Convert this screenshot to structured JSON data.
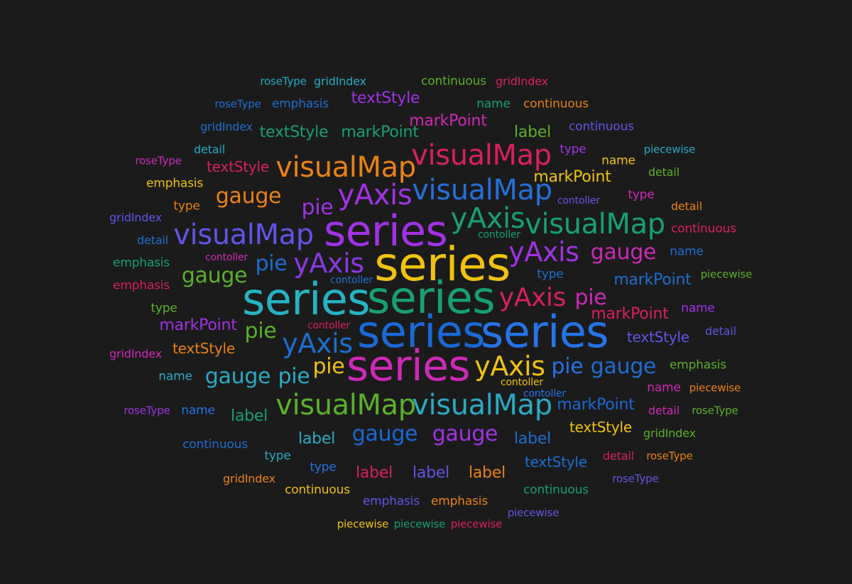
{
  "chart_data": {
    "type": "wordcloud",
    "background": "#1b1b1b",
    "words": [
      {
        "text": "series",
        "weight": 66,
        "color": "#f0c20f"
      },
      {
        "text": "series",
        "weight": 62,
        "color": "#26b3c4"
      },
      {
        "text": "series",
        "weight": 62,
        "color": "#17a071"
      },
      {
        "text": "series",
        "weight": 62,
        "color": "#1a69d7"
      },
      {
        "text": "series",
        "weight": 62,
        "color": "#2574e8"
      },
      {
        "text": "series",
        "weight": 60,
        "color": "#cf29b8"
      },
      {
        "text": "series",
        "weight": 60,
        "color": "#a132e6"
      },
      {
        "text": "visualMap",
        "weight": 40,
        "color": "#ea8114"
      },
      {
        "text": "visualMap",
        "weight": 40,
        "color": "#d9205e"
      },
      {
        "text": "visualMap",
        "weight": 40,
        "color": "#2570dc"
      },
      {
        "text": "visualMap",
        "weight": 40,
        "color": "#6254e6"
      },
      {
        "text": "visualMap",
        "weight": 40,
        "color": "#17a071"
      },
      {
        "text": "visualMap",
        "weight": 40,
        "color": "#5bb02a"
      },
      {
        "text": "visualMap",
        "weight": 40,
        "color": "#2aaac4"
      },
      {
        "text": "yAxis",
        "weight": 40,
        "color": "#a132e6"
      },
      {
        "text": "yAxis",
        "weight": 40,
        "color": "#17a071"
      },
      {
        "text": "yAxis",
        "weight": 38,
        "color": "#8c38e3"
      },
      {
        "text": "yAxis",
        "weight": 38,
        "color": "#a132e6"
      },
      {
        "text": "yAxis",
        "weight": 36,
        "color": "#d9205e"
      },
      {
        "text": "yAxis",
        "weight": 38,
        "color": "#1d6ed0"
      },
      {
        "text": "yAxis",
        "weight": 38,
        "color": "#f0c20f"
      },
      {
        "text": "gauge",
        "weight": 30,
        "color": "#ea8114"
      },
      {
        "text": "gauge",
        "weight": 30,
        "color": "#cf29b8"
      },
      {
        "text": "gauge",
        "weight": 30,
        "color": "#5bb02a"
      },
      {
        "text": "gauge",
        "weight": 30,
        "color": "#2aaac4"
      },
      {
        "text": "gauge",
        "weight": 30,
        "color": "#1a69d7"
      },
      {
        "text": "gauge",
        "weight": 30,
        "color": "#a132e6"
      },
      {
        "text": "gauge",
        "weight": 30,
        "color": "#1d6ed0"
      },
      {
        "text": "pie",
        "weight": 30,
        "color": "#a132e6"
      },
      {
        "text": "pie",
        "weight": 30,
        "color": "#1d6ed0"
      },
      {
        "text": "pie",
        "weight": 30,
        "color": "#cf29b8"
      },
      {
        "text": "pie",
        "weight": 30,
        "color": "#5bb02a"
      },
      {
        "text": "pie",
        "weight": 30,
        "color": "#f0c20f"
      },
      {
        "text": "pie",
        "weight": 30,
        "color": "#2aaac4"
      },
      {
        "text": "pie",
        "weight": 30,
        "color": "#2574e8"
      },
      {
        "text": "markPoint",
        "weight": 22,
        "color": "#cf29b8"
      },
      {
        "text": "markPoint",
        "weight": 22,
        "color": "#17a071"
      },
      {
        "text": "markPoint",
        "weight": 22,
        "color": "#f0c20f"
      },
      {
        "text": "markPoint",
        "weight": 22,
        "color": "#1d6ed0"
      },
      {
        "text": "markPoint",
        "weight": 22,
        "color": "#d9205e"
      },
      {
        "text": "markPoint",
        "weight": 22,
        "color": "#a132e6"
      },
      {
        "text": "markPoint",
        "weight": 22,
        "color": "#1a69d7"
      },
      {
        "text": "textStyle",
        "weight": 22,
        "color": "#a132e6"
      },
      {
        "text": "textStyle",
        "weight": 22,
        "color": "#17a071"
      },
      {
        "text": "textStyle",
        "weight": 20,
        "color": "#d9205e"
      },
      {
        "text": "textStyle",
        "weight": 20,
        "color": "#6254e6"
      },
      {
        "text": "textStyle",
        "weight": 20,
        "color": "#ea8114"
      },
      {
        "text": "textStyle",
        "weight": 20,
        "color": "#f0c20f"
      },
      {
        "text": "textStyle",
        "weight": 20,
        "color": "#1d6ed0"
      },
      {
        "text": "label",
        "weight": 22,
        "color": "#5bb02a"
      },
      {
        "text": "label",
        "weight": 22,
        "color": "#17a071"
      },
      {
        "text": "label",
        "weight": 22,
        "color": "#2aaac4"
      },
      {
        "text": "label",
        "weight": 22,
        "color": "#1d6ed0"
      },
      {
        "text": "label",
        "weight": 22,
        "color": "#d9205e"
      },
      {
        "text": "label",
        "weight": 22,
        "color": "#6254e6"
      },
      {
        "text": "label",
        "weight": 22,
        "color": "#ea8114"
      },
      {
        "text": "continuous",
        "weight": 17,
        "color": "#5bb02a"
      },
      {
        "text": "continuous",
        "weight": 17,
        "color": "#ea8114"
      },
      {
        "text": "continuous",
        "weight": 17,
        "color": "#6254e6"
      },
      {
        "text": "continuous",
        "weight": 17,
        "color": "#d9205e"
      },
      {
        "text": "continuous",
        "weight": 17,
        "color": "#1d6ed0"
      },
      {
        "text": "continuous",
        "weight": 17,
        "color": "#f0c20f"
      },
      {
        "text": "continuous",
        "weight": 17,
        "color": "#17a071"
      },
      {
        "text": "emphasis",
        "weight": 17,
        "color": "#1d6ed0"
      },
      {
        "text": "emphasis",
        "weight": 17,
        "color": "#f0c20f"
      },
      {
        "text": "emphasis",
        "weight": 17,
        "color": "#17a071"
      },
      {
        "text": "emphasis",
        "weight": 17,
        "color": "#d9205e"
      },
      {
        "text": "emphasis",
        "weight": 17,
        "color": "#5bb02a"
      },
      {
        "text": "emphasis",
        "weight": 17,
        "color": "#6254e6"
      },
      {
        "text": "emphasis",
        "weight": 17,
        "color": "#ea8114"
      },
      {
        "text": "name",
        "weight": 17,
        "color": "#17a071"
      },
      {
        "text": "name",
        "weight": 17,
        "color": "#f0c20f"
      },
      {
        "text": "name",
        "weight": 17,
        "color": "#1d6ed0"
      },
      {
        "text": "name",
        "weight": 17,
        "color": "#a132e6"
      },
      {
        "text": "name",
        "weight": 17,
        "color": "#2aaac4"
      },
      {
        "text": "name",
        "weight": 17,
        "color": "#cf29b8"
      },
      {
        "text": "name",
        "weight": 17,
        "color": "#2574e8"
      },
      {
        "text": "type",
        "weight": 17,
        "color": "#a132e6"
      },
      {
        "text": "type",
        "weight": 17,
        "color": "#cf29b8"
      },
      {
        "text": "type",
        "weight": 17,
        "color": "#ea8114"
      },
      {
        "text": "type",
        "weight": 17,
        "color": "#1d6ed0"
      },
      {
        "text": "type",
        "weight": 17,
        "color": "#5bb02a"
      },
      {
        "text": "type",
        "weight": 17,
        "color": "#2aaac4"
      },
      {
        "text": "type",
        "weight": 17,
        "color": "#2574e8"
      },
      {
        "text": "detail",
        "weight": 16,
        "color": "#2aaac4"
      },
      {
        "text": "detail",
        "weight": 16,
        "color": "#5bb02a"
      },
      {
        "text": "detail",
        "weight": 16,
        "color": "#ea8114"
      },
      {
        "text": "detail",
        "weight": 16,
        "color": "#1d6ed0"
      },
      {
        "text": "detail",
        "weight": 16,
        "color": "#6254e6"
      },
      {
        "text": "detail",
        "weight": 16,
        "color": "#cf29b8"
      },
      {
        "text": "detail",
        "weight": 16,
        "color": "#d9205e"
      },
      {
        "text": "gridIndex",
        "weight": 16,
        "color": "#2aaac4"
      },
      {
        "text": "gridIndex",
        "weight": 16,
        "color": "#d9205e"
      },
      {
        "text": "gridIndex",
        "weight": 16,
        "color": "#1d6ed0"
      },
      {
        "text": "gridIndex",
        "weight": 16,
        "color": "#6254e6"
      },
      {
        "text": "gridIndex",
        "weight": 16,
        "color": "#cf29b8"
      },
      {
        "text": "gridIndex",
        "weight": 16,
        "color": "#5bb02a"
      },
      {
        "text": "gridIndex",
        "weight": 16,
        "color": "#ea8114"
      },
      {
        "text": "roseType",
        "weight": 15,
        "color": "#2aaac4"
      },
      {
        "text": "roseType",
        "weight": 15,
        "color": "#1d6ed0"
      },
      {
        "text": "roseType",
        "weight": 15,
        "color": "#cf29b8"
      },
      {
        "text": "roseType",
        "weight": 15,
        "color": "#a132e6"
      },
      {
        "text": "roseType",
        "weight": 15,
        "color": "#5bb02a"
      },
      {
        "text": "roseType",
        "weight": 15,
        "color": "#ea8114"
      },
      {
        "text": "roseType",
        "weight": 15,
        "color": "#6254e6"
      },
      {
        "text": "piecewise",
        "weight": 15,
        "color": "#2aaac4"
      },
      {
        "text": "piecewise",
        "weight": 15,
        "color": "#5bb02a"
      },
      {
        "text": "piecewise",
        "weight": 15,
        "color": "#ea8114"
      },
      {
        "text": "piecewise",
        "weight": 15,
        "color": "#6254e6"
      },
      {
        "text": "piecewise",
        "weight": 15,
        "color": "#f0c20f"
      },
      {
        "text": "piecewise",
        "weight": 15,
        "color": "#17a071"
      },
      {
        "text": "piecewise",
        "weight": 15,
        "color": "#d9205e"
      },
      {
        "text": "contoller",
        "weight": 14,
        "color": "#6254e6"
      },
      {
        "text": "contoller",
        "weight": 14,
        "color": "#17a071"
      },
      {
        "text": "contoller",
        "weight": 14,
        "color": "#cf29b8"
      },
      {
        "text": "contoller",
        "weight": 14,
        "color": "#1d6ed0"
      },
      {
        "text": "contoller",
        "weight": 14,
        "color": "#d9205e"
      },
      {
        "text": "contoller",
        "weight": 14,
        "color": "#f0c20f"
      },
      {
        "text": "contoller",
        "weight": 14,
        "color": "#2574e8"
      }
    ]
  }
}
